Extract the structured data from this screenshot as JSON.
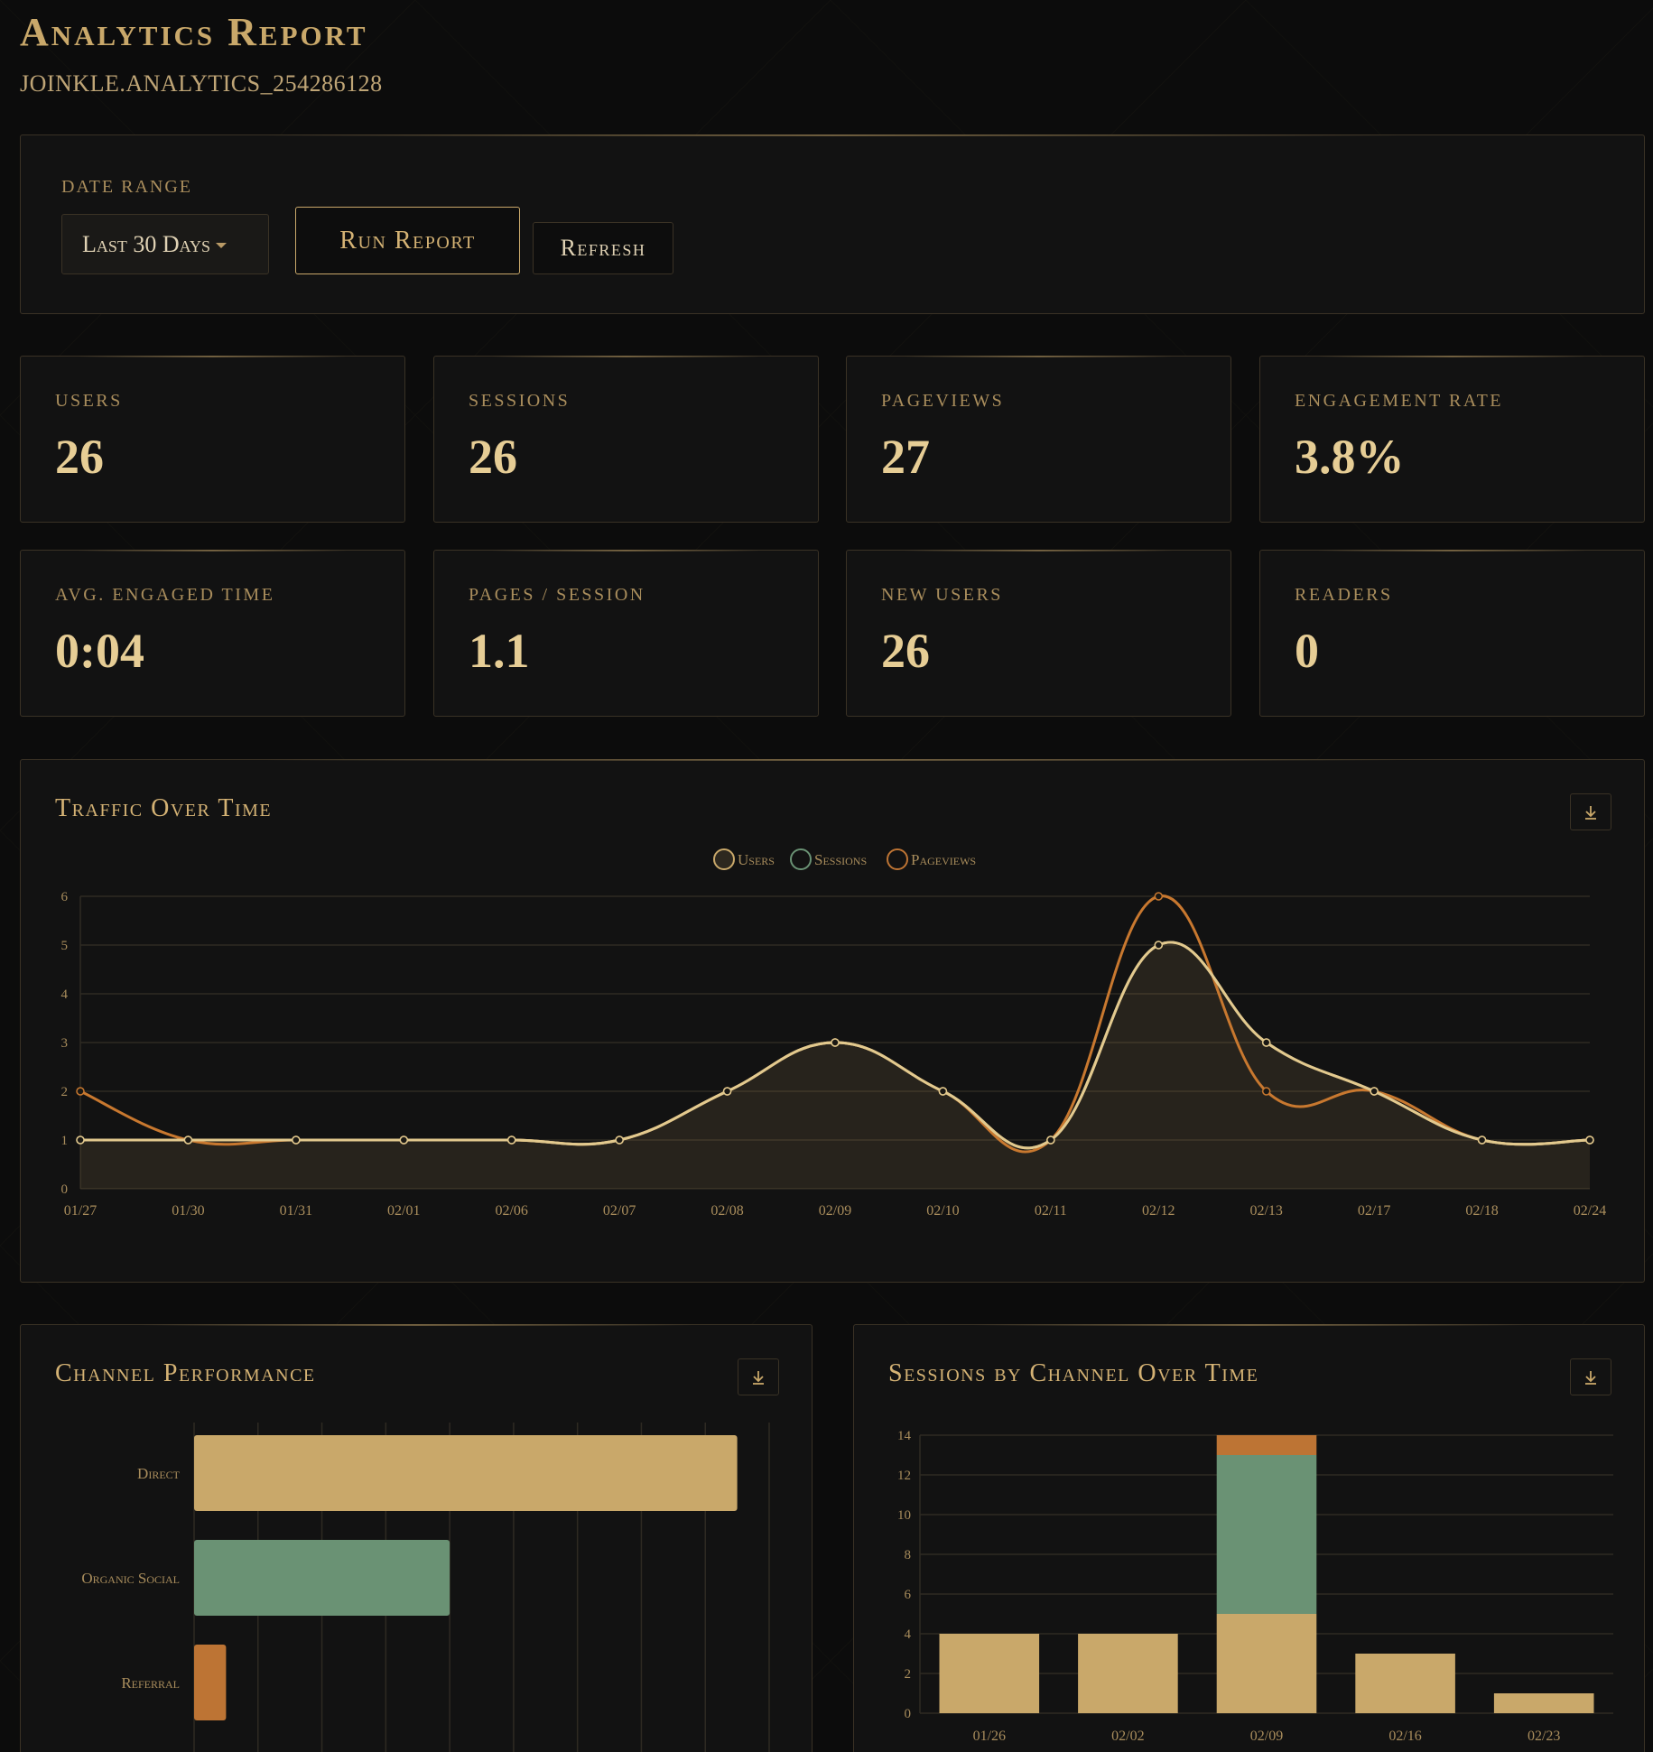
{
  "header": {
    "title": "Analytics Report",
    "subtitle": "JOINKLE.ANALYTICS_254286128"
  },
  "filters": {
    "date_range_label": "DATE RANGE",
    "date_range_value": "Last 30 Days",
    "run_report_label": "Run Report",
    "refresh_label": "Refresh"
  },
  "metrics": [
    {
      "label": "Users",
      "value": "26"
    },
    {
      "label": "Sessions",
      "value": "26"
    },
    {
      "label": "Pageviews",
      "value": "27"
    },
    {
      "label": "Engagement Rate",
      "value": "3.8%"
    },
    {
      "label": "Avg. Engaged Time",
      "value": "0:04"
    },
    {
      "label": "Pages / Session",
      "value": "1.1"
    },
    {
      "label": "New Users",
      "value": "26"
    },
    {
      "label": "Readers",
      "value": "0"
    }
  ],
  "colors": {
    "gold": "#c9a86a",
    "green": "#6a9274",
    "orange": "#bd7434",
    "grid": "#2e2a22"
  },
  "icons": {
    "download": "download-icon"
  },
  "chart_data": [
    {
      "type": "line",
      "title": "Traffic Over Time",
      "x": [
        "01/27",
        "01/30",
        "01/31",
        "02/01",
        "02/06",
        "02/07",
        "02/08",
        "02/09",
        "02/10",
        "02/11",
        "02/12",
        "02/13",
        "02/17",
        "02/18",
        "02/24"
      ],
      "series": [
        {
          "name": "Users",
          "values": [
            1,
            1,
            1,
            1,
            1,
            1,
            2,
            3,
            2,
            1,
            5,
            3,
            2,
            1,
            1
          ]
        },
        {
          "name": "Sessions",
          "values": [
            1,
            1,
            1,
            1,
            1,
            1,
            2,
            3,
            2,
            1,
            5,
            3,
            2,
            1,
            1
          ]
        },
        {
          "name": "Pageviews",
          "values": [
            2,
            1,
            1,
            1,
            1,
            1,
            2,
            3,
            2,
            1,
            6,
            2,
            2,
            1,
            1
          ]
        }
      ],
      "yticks": [
        0,
        1,
        2,
        3,
        4,
        5,
        6
      ],
      "ylim": [
        0,
        6
      ],
      "legend": "top-center",
      "grid": true
    },
    {
      "type": "bar",
      "orientation": "horizontal",
      "title": "Channel Performance",
      "categories": [
        "Direct",
        "Organic Social",
        "Referral"
      ],
      "values": [
        17,
        8,
        1
      ],
      "xlim": [
        0,
        18
      ],
      "grid": true
    },
    {
      "type": "bar",
      "stacked": true,
      "title": "Sessions by Channel Over Time",
      "categories": [
        "01/26",
        "02/02",
        "02/09",
        "02/16",
        "02/23"
      ],
      "series": [
        {
          "name": "Direct",
          "values": [
            4,
            4,
            5,
            3,
            1
          ]
        },
        {
          "name": "Organic Social",
          "values": [
            0,
            0,
            8,
            0,
            0
          ]
        },
        {
          "name": "Referral",
          "values": [
            0,
            0,
            1,
            0,
            0
          ]
        }
      ],
      "yticks": [
        0,
        2,
        4,
        6,
        8,
        10,
        12,
        14
      ],
      "ylim": [
        0,
        14
      ],
      "grid": true
    }
  ]
}
